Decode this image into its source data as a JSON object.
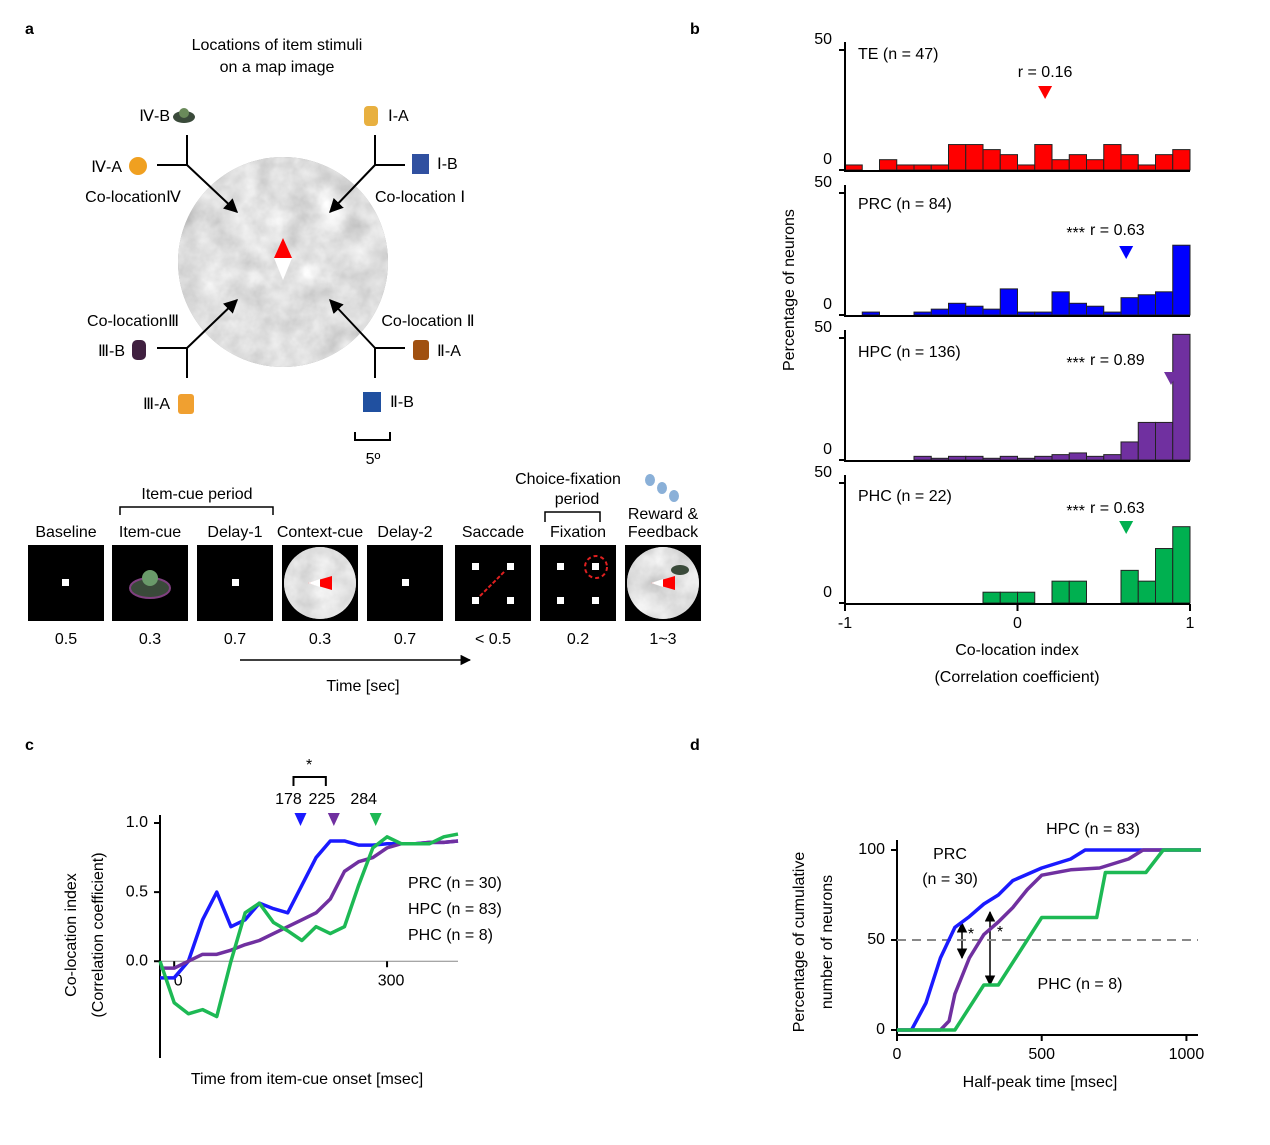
{
  "panel_labels": [
    "a",
    "b",
    "c",
    "d"
  ],
  "panel_a": {
    "title": [
      "Locations of item stimuli",
      "on a map image"
    ],
    "item_labels": [
      "Ⅳ-B",
      "Ⅰ-A",
      "Ⅳ-A",
      "Ⅰ-B",
      "Ⅲ-B",
      "Ⅱ-A",
      "Ⅲ-A",
      "Ⅱ-B"
    ],
    "colocation_labels": [
      "Co-locationⅣ",
      "Co-location Ⅰ",
      "Co-locationⅢ",
      "Co-location Ⅱ"
    ],
    "scale_label": "5º",
    "period_labels": [
      "Item-cue period",
      "Choice-fixation",
      "period"
    ],
    "frames": [
      {
        "name": [
          "Baseline"
        ],
        "duration": "0.5"
      },
      {
        "name": [
          "Item-cue"
        ],
        "duration": "0.3"
      },
      {
        "name": [
          "Delay-1"
        ],
        "duration": "0.7"
      },
      {
        "name": [
          "Context-cue"
        ],
        "duration": "0.3"
      },
      {
        "name": [
          "Delay-2"
        ],
        "duration": "0.7"
      },
      {
        "name": [
          "Saccade"
        ],
        "duration": "< 0.5"
      },
      {
        "name": [
          "Fixation"
        ],
        "duration": "0.2"
      },
      {
        "name": [
          "Reward &",
          "Feedback"
        ],
        "duration": "1~3"
      }
    ],
    "time_label": "Time [sec]"
  },
  "chart_data": [
    {
      "type": "histogram",
      "name": "TE (n = 47)",
      "annotation": "r = 0.16",
      "r": 0.16,
      "color": "#ff0000",
      "ylabel": "Percentage of neurons",
      "bins": [
        -1,
        -0.9,
        -0.8,
        -0.7,
        -0.6,
        -0.5,
        -0.4,
        -0.3,
        -0.2,
        -0.1,
        0,
        0.1,
        0.2,
        0.3,
        0.4,
        0.5,
        0.6,
        0.7,
        0.8,
        0.9,
        1
      ],
      "values": [
        2.1,
        0,
        4.3,
        2.1,
        2.1,
        2.1,
        10.6,
        10.6,
        8.5,
        6.4,
        2.1,
        10.6,
        4.3,
        6.4,
        4.3,
        10.6,
        6.4,
        2.1,
        6.4,
        8.5
      ],
      "xlim": [
        -1,
        1
      ],
      "ylim": [
        0,
        50
      ],
      "yticks": [
        0,
        50
      ]
    },
    {
      "type": "histogram",
      "name": "PRC (n = 84)",
      "stars": "***",
      "annotation": "r = 0.63",
      "r": 0.63,
      "color": "#0000ff",
      "bins": [
        -1,
        -0.9,
        -0.8,
        -0.7,
        -0.6,
        -0.5,
        -0.4,
        -0.3,
        -0.2,
        -0.1,
        0,
        0.1,
        0.2,
        0.3,
        0.4,
        0.5,
        0.6,
        0.7,
        0.8,
        0.9,
        1
      ],
      "values": [
        0,
        1.2,
        0,
        0,
        1.2,
        2.4,
        4.8,
        3.6,
        2.4,
        10.7,
        1.2,
        1.2,
        9.5,
        4.8,
        3.6,
        1.2,
        7.1,
        8.3,
        9.5,
        28.6
      ],
      "xlim": [
        -1,
        1
      ],
      "ylim": [
        0,
        50
      ],
      "yticks": [
        0,
        50
      ]
    },
    {
      "type": "histogram",
      "name": "HPC (n = 136)",
      "stars": "***",
      "annotation": "r = 0.89",
      "r": 0.89,
      "color": "#7030a0",
      "bins": [
        -1,
        -0.9,
        -0.8,
        -0.7,
        -0.6,
        -0.5,
        -0.4,
        -0.3,
        -0.2,
        -0.1,
        0,
        0.1,
        0.2,
        0.3,
        0.4,
        0.5,
        0.6,
        0.7,
        0.8,
        0.9,
        1
      ],
      "values": [
        0,
        0,
        0,
        0,
        1.5,
        0.7,
        1.5,
        1.5,
        0.7,
        1.5,
        0.7,
        1.5,
        2.2,
        2.9,
        1.5,
        2.2,
        7.4,
        15.4,
        15.4,
        51.5
      ],
      "xlim": [
        -1,
        1
      ],
      "ylim": [
        0,
        50
      ],
      "yticks": [
        0,
        50
      ]
    },
    {
      "type": "histogram",
      "name": "PHC (n = 22)",
      "stars": "***",
      "annotation": "r = 0.63",
      "r": 0.63,
      "color": "#00b050",
      "xlabel": [
        "Co-location index",
        "(Correlation coefficient)"
      ],
      "bins": [
        -1,
        -0.9,
        -0.8,
        -0.7,
        -0.6,
        -0.5,
        -0.4,
        -0.3,
        -0.2,
        -0.1,
        0,
        0.1,
        0.2,
        0.3,
        0.4,
        0.5,
        0.6,
        0.7,
        0.8,
        0.9,
        1
      ],
      "values": [
        0,
        0,
        0,
        0,
        0,
        0,
        0,
        0,
        4.5,
        4.5,
        4.5,
        0,
        9.1,
        9.1,
        0,
        0,
        13.6,
        9.1,
        22.7,
        31.8
      ],
      "xlim": [
        -1,
        1
      ],
      "ylim": [
        0,
        50
      ],
      "yticks": [
        0,
        50
      ],
      "xticks": [
        -1,
        0,
        1
      ]
    },
    {
      "type": "line",
      "xlabel": "Time from item-cue onset [msec]",
      "ylabel": [
        "Co-location index",
        "(Correlation coefficient)"
      ],
      "x": [
        -20,
        0,
        20,
        40,
        60,
        80,
        100,
        120,
        140,
        160,
        180,
        200,
        220,
        240,
        260,
        280,
        300,
        320,
        340,
        360,
        380,
        400
      ],
      "xlim": [
        -20,
        400
      ],
      "ylim": [
        -0.7,
        1.0
      ],
      "xticks": [
        0,
        300
      ],
      "yticks": [
        {
          "value": 0,
          "label": "0.0"
        },
        {
          "value": 0.5,
          "label": "0.5"
        },
        {
          "value": 1,
          "label": "1.0"
        }
      ],
      "significance": "*",
      "series": [
        {
          "name": "PRC (n = 30)",
          "color": "#1a1aff",
          "half_peak": 178,
          "values": [
            -0.12,
            -0.12,
            0.0,
            0.3,
            0.5,
            0.25,
            0.3,
            0.42,
            0.38,
            0.35,
            0.55,
            0.75,
            0.87,
            0.87,
            0.84,
            0.84,
            0.85,
            0.85,
            0.85,
            0.86,
            0.86,
            0.87
          ]
        },
        {
          "name": "HPC (n = 83)",
          "color": "#7030a0",
          "half_peak": 225,
          "values": [
            -0.05,
            -0.05,
            0.0,
            0.05,
            0.05,
            0.08,
            0.12,
            0.15,
            0.2,
            0.25,
            0.3,
            0.35,
            0.45,
            0.65,
            0.72,
            0.75,
            0.82,
            0.85,
            0.85,
            0.86,
            0.86,
            0.87
          ]
        },
        {
          "name": "PHC (n = 8)",
          "color": "#1db954",
          "half_peak": 284,
          "values": [
            0.0,
            -0.3,
            -0.38,
            -0.35,
            -0.4,
            0.0,
            0.35,
            0.42,
            0.28,
            0.22,
            0.15,
            0.25,
            0.2,
            0.25,
            0.55,
            0.82,
            0.9,
            0.85,
            0.85,
            0.85,
            0.9,
            0.92
          ]
        }
      ]
    },
    {
      "type": "line",
      "xlabel": "Half-peak time [msec]",
      "ylabel": [
        "Percentage of cumulative",
        "number of neurons"
      ],
      "xlim": [
        0,
        1040
      ],
      "ylim": [
        0,
        100
      ],
      "xticks": [
        0,
        500,
        1000
      ],
      "yticks": [
        0,
        50,
        100
      ],
      "reference_line": 50,
      "significance": [
        "*",
        "*"
      ],
      "series": [
        {
          "name": [
            "PRC",
            "(n = 30)"
          ],
          "color": "#1a1aff",
          "x": [
            0,
            50,
            100,
            150,
            200,
            250,
            300,
            350,
            400,
            500,
            600,
            650,
            700,
            1050
          ],
          "values": [
            0,
            0,
            15,
            40,
            57,
            63,
            70,
            75,
            83,
            90,
            95,
            100,
            100,
            100
          ]
        },
        {
          "name": [
            "HPC (n = 83)"
          ],
          "color": "#7030a0",
          "x": [
            0,
            150,
            180,
            200,
            250,
            300,
            350,
            400,
            450,
            500,
            600,
            700,
            800,
            850,
            1050
          ],
          "values": [
            0,
            0,
            5,
            20,
            40,
            53,
            60,
            68,
            78,
            86,
            89,
            90,
            95,
            100,
            100
          ]
        },
        {
          "name": [
            "PHC (n = 8)"
          ],
          "color": "#1db954",
          "x": [
            0,
            200,
            300,
            350,
            500,
            690,
            720,
            860,
            920,
            1050
          ],
          "values": [
            0,
            0,
            25,
            25,
            62.5,
            62.5,
            87.5,
            87.5,
            100,
            100
          ]
        }
      ]
    }
  ]
}
